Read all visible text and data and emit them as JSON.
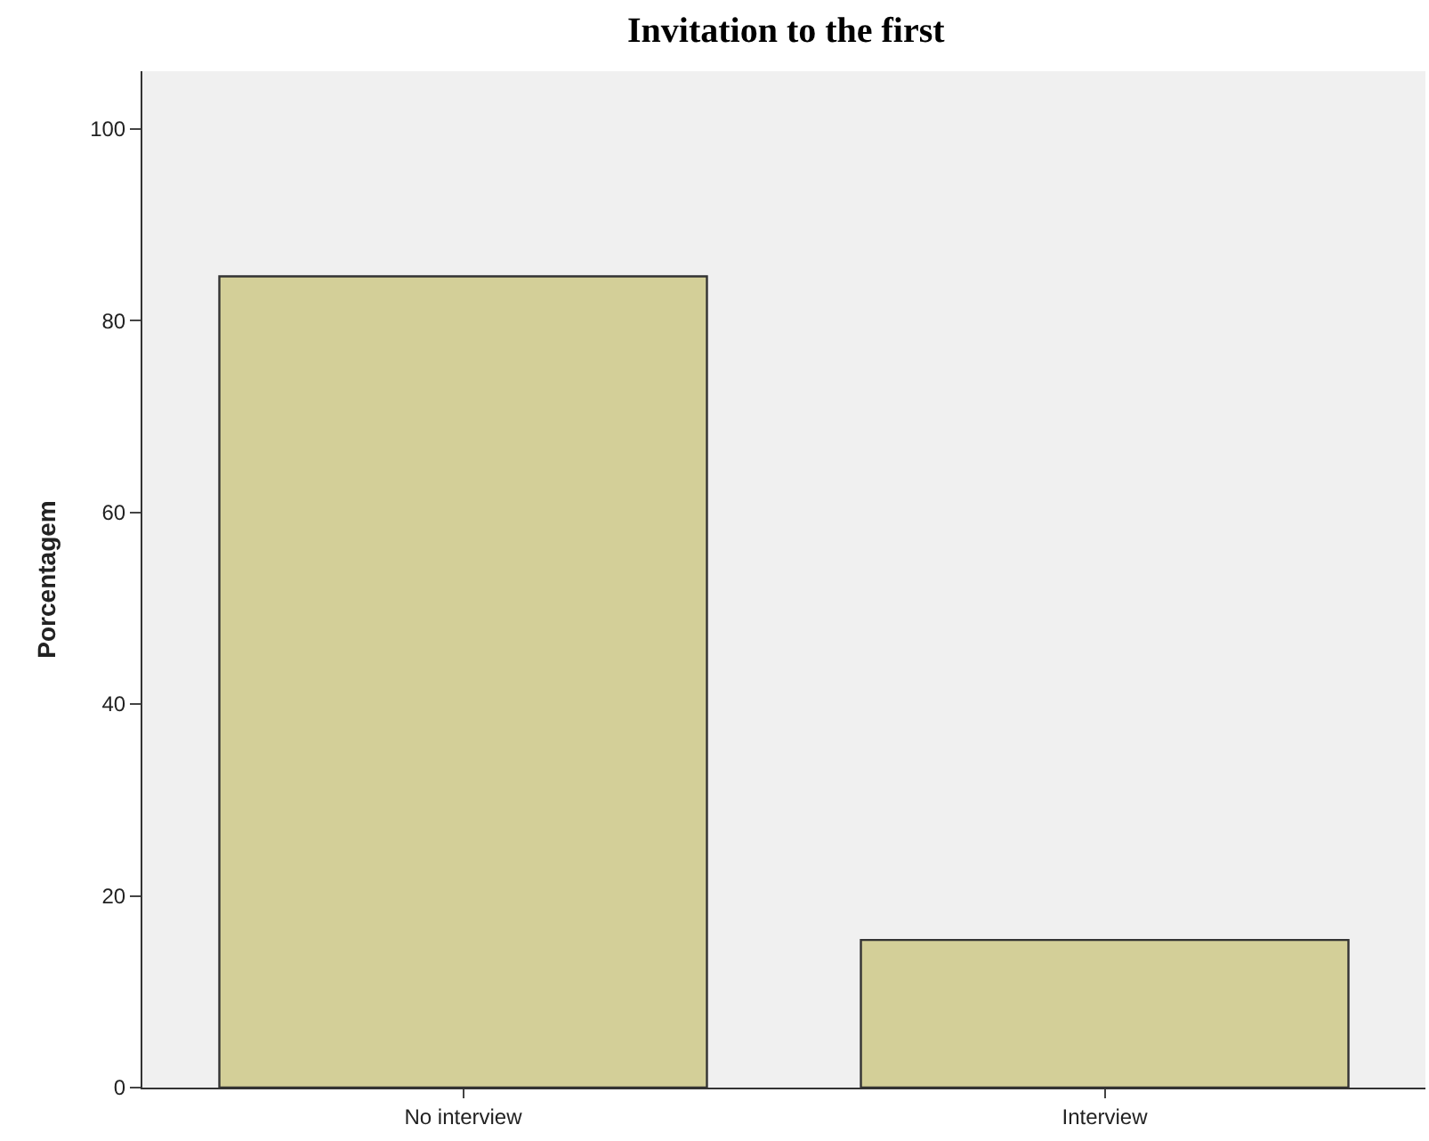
{
  "chart_data": {
    "type": "bar",
    "title": "Invitation to the first",
    "ylabel": "Porcentagem",
    "categories": [
      "No interview",
      "Interview"
    ],
    "values": [
      84.6,
      15.4
    ],
    "color": "#d3cf98",
    "ylim": [
      0,
      106
    ],
    "yticks": [
      0,
      20,
      40,
      60,
      80,
      100
    ],
    "grid": false
  }
}
